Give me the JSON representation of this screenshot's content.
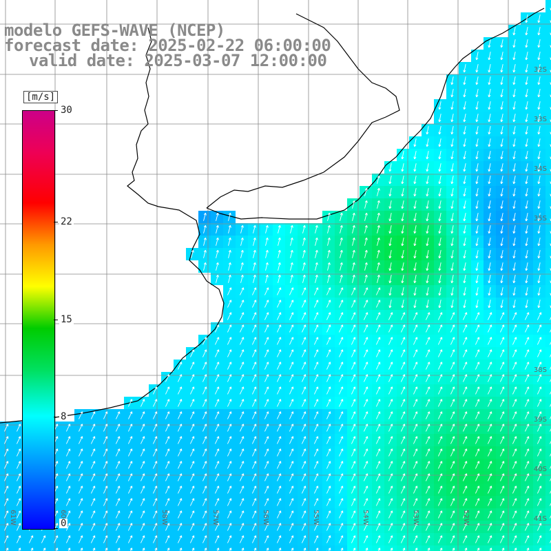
{
  "title": {
    "line1": "modelo GEFS-WAVE (NCEP)",
    "line2": "forecast date: 2025-02-22 06:00:00",
    "line3": "valid date: 2025-03-07 12:00:00"
  },
  "colorbar": {
    "unit": "[m/s]",
    "ticks": [
      "0",
      "8",
      "15",
      "22",
      "30"
    ],
    "tick_values": [
      0,
      8,
      15,
      22,
      30
    ],
    "range": [
      0,
      30
    ],
    "colors": [
      "#0000ff",
      "#0099ff",
      "#00ffff",
      "#00e060",
      "#00cc00",
      "#ffff00",
      "#ff9900",
      "#ff0000",
      "#cc0088"
    ]
  },
  "map": {
    "lat_labels": [
      "32S",
      "33S",
      "34S",
      "35S",
      "38S",
      "39S",
      "40S",
      "41S"
    ],
    "lon_labels": [
      "61W",
      "60W",
      "58W",
      "57W",
      "56W",
      "55W",
      "54W",
      "53W",
      "52W"
    ],
    "land_color": "#ffffff",
    "grid_color": "#888888",
    "arrow_color": "#ffffff"
  }
}
